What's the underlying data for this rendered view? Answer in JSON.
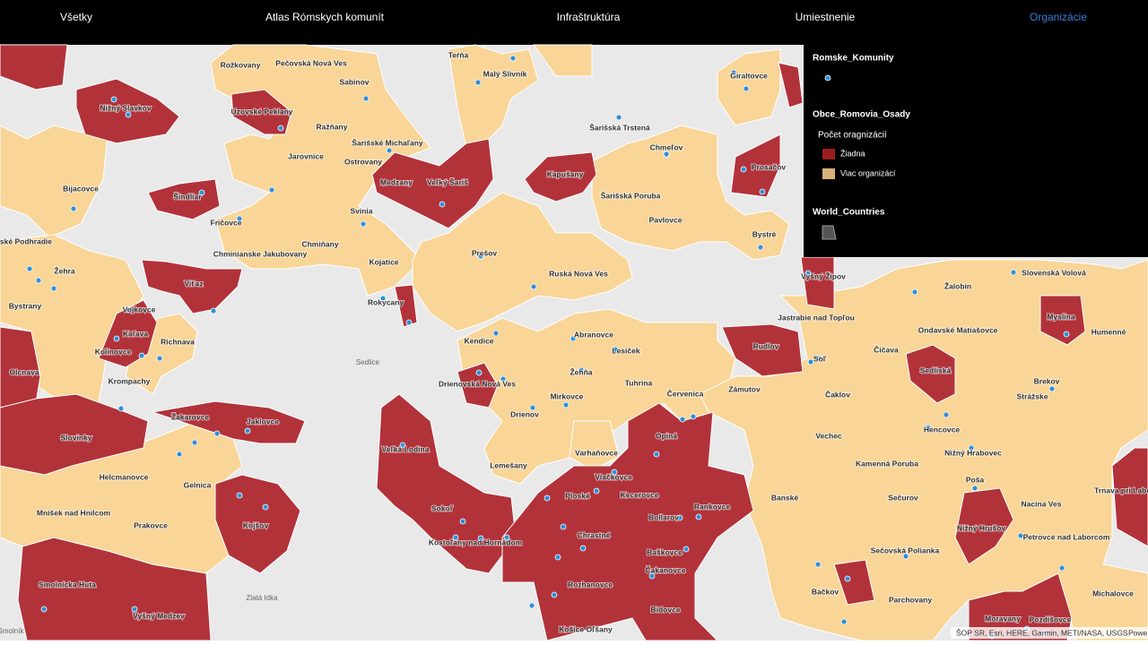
{
  "nav": {
    "tabs": [
      "Všetky",
      "Atlas Rómskych komunít",
      "Infraštruktúra",
      "Umiestnenie",
      "Organizácie"
    ]
  },
  "legend": {
    "layers": [
      {
        "title": "Romske_Komunity"
      },
      {
        "title": "Obce_Romovia_Osady",
        "subtitle": "Počet oragnizácií",
        "items": [
          "Žiadna",
          "Viac organizácí"
        ]
      },
      {
        "title": "World_Countries"
      }
    ]
  },
  "map": {
    "places": [
      "Teŕňa",
      "Malý Slivník",
      "Rožkovany",
      "Pečovská Nová Ves",
      "Sabinov",
      "Nižný Slavkov",
      "Uzovské Peklany",
      "Ražňany",
      "Šarišské Michaľany",
      "Jarovnice",
      "Ostrovany",
      "Šarišská Trstená",
      "Giraltovce",
      "Chmeľov",
      "Prosačov",
      "Bijacovce",
      "Medzany",
      "Veľký Šariš",
      "Kapušany",
      "Šindliar",
      "Šarišská Poruba",
      "Svinia",
      "Fričovce",
      "Pavlovce",
      "Bystré",
      "Chminianske Jakubovany",
      "Chmiňany",
      "Prešov",
      "Kojatice",
      "Ruská Nová Ves",
      "Spišské Podhradie",
      "Žehra",
      "Viťaz",
      "Vyšný Žipov",
      "Slovenská Volová",
      "Žalobín",
      "Rokycany",
      "Bystrany",
      "Vojkovce",
      "Kaľava",
      "Richnava",
      "Kolinovce",
      "Jastrabie nad Topľou",
      "Myslina",
      "Ondavské Matiašovce",
      "Humenné",
      "Abranovce",
      "Kendice",
      "Lesíček",
      "Rudlov",
      "Soľ",
      "Čičava",
      "Sedlice",
      "Olcnava",
      "Žehňa",
      "Sedliská",
      "Krompachy",
      "Drienovská Nová Ves",
      "Tuhrina",
      "Zámutov",
      "Červenica",
      "Mirkovce",
      "Čaklov",
      "Brekov",
      "Drienov",
      "Žakarovce",
      "Jaklovce",
      "Strážske",
      "Slovinky",
      "Opiná",
      "Hencovce",
      "Vechec",
      "Veľká Lodina",
      "Varhaňovce",
      "Nižný Hrabovec",
      "Lemešany",
      "Kamenná Poruba",
      "Vlačkovce",
      "Helcmanovce",
      "Gelnica",
      "Poša",
      "Ploské",
      "Kecerovce",
      "Banské",
      "Sečurov",
      "Trnava pri Laborci",
      "Sokoľ",
      "Rankovce",
      "Nacina Ves",
      "Bollarov",
      "Mníšek nad Hnilcom",
      "Prakovce",
      "Kojšov",
      "Kostoľany nad Hornádom",
      "Chrastné",
      "Nižný Hrušov",
      "Petrovce nad Laborcom",
      "Sečovská Polianka",
      "Baškovce",
      "Čakanovce",
      "Smolnícka Huta",
      "Rozhanovce",
      "Bačkov",
      "Parchovany",
      "Michalovce",
      "Zlatá Idka",
      "Vyšný Medzev",
      "Bidovce",
      "Moravany",
      "Pozdišovce",
      "Košice Oľšany",
      "Smolník"
    ]
  },
  "attribution": "ŠOP SR, Esri, HERE, Garmin, METI/NASA, USGS",
  "powered": "Powe"
}
